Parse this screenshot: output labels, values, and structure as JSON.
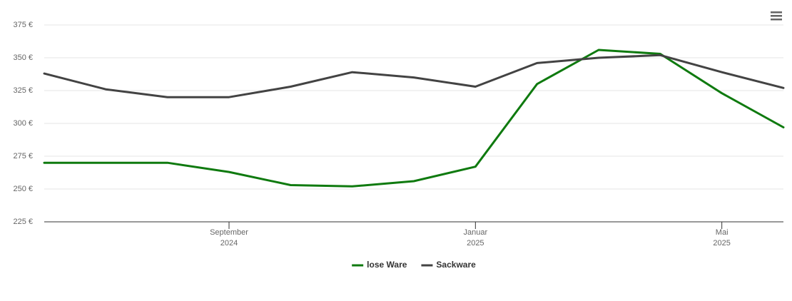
{
  "chart_data": {
    "type": "line",
    "x": [
      "2024-06",
      "2024-07",
      "2024-08",
      "2024-09",
      "2024-10",
      "2024-11",
      "2024-12",
      "2025-01",
      "2025-02",
      "2025-03",
      "2025-04",
      "2025-05",
      "2025-06"
    ],
    "xlim": [
      "2024-06",
      "2025-06"
    ],
    "xticks": [
      {
        "value": "2024-09",
        "label": [
          "September",
          "2024"
        ]
      },
      {
        "value": "2025-01",
        "label": [
          "Januar",
          "2025"
        ]
      },
      {
        "value": "2025-05",
        "label": [
          "Mai",
          "2025"
        ]
      }
    ],
    "ylim": [
      225,
      375
    ],
    "yticks": [
      {
        "value": 225,
        "label": "225 €"
      },
      {
        "value": 250,
        "label": "250 €"
      },
      {
        "value": 275,
        "label": "275 €"
      },
      {
        "value": 300,
        "label": "300 €"
      },
      {
        "value": 325,
        "label": "325 €"
      },
      {
        "value": 350,
        "label": "350 €"
      },
      {
        "value": 375,
        "label": "375 €"
      }
    ],
    "grid": true,
    "legend": "bottom",
    "series": [
      {
        "name": "lose Ware",
        "color": "#0f7a0f",
        "values": [
          270,
          270,
          270,
          263,
          253,
          252,
          256,
          267,
          330,
          356,
          353,
          323,
          297
        ]
      },
      {
        "name": "Sackware",
        "color": "#434343",
        "values": [
          338,
          326,
          320,
          320,
          328,
          339,
          335,
          328,
          346,
          350,
          352,
          339,
          327
        ]
      }
    ]
  }
}
